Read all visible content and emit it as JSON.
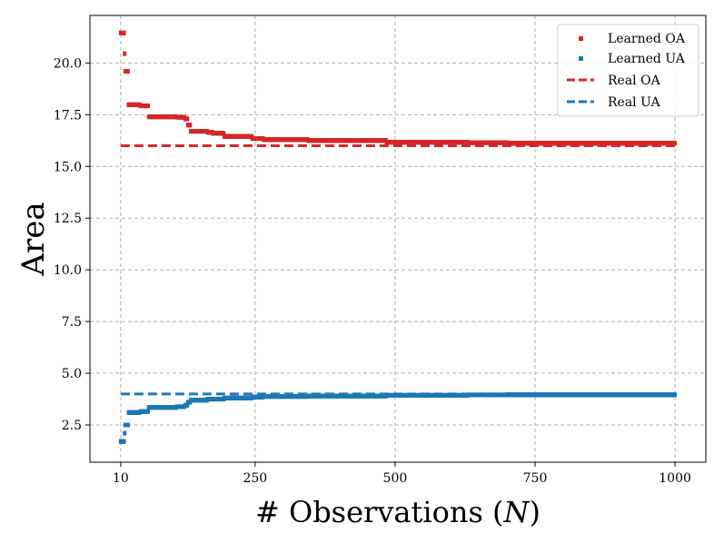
{
  "chart_data": {
    "type": "scatter",
    "xlabel": "# Observations (N)",
    "xlabel_parts": [
      "# Observations (",
      "N",
      ")"
    ],
    "ylabel": "Area",
    "xlim": [
      -45,
      1055
    ],
    "ylim": [
      0.7,
      22.3
    ],
    "grid": true,
    "legend_position": "top-right",
    "x_ticks": [
      10,
      250,
      500,
      750,
      1000
    ],
    "x_tick_labels": [
      "10",
      "250",
      "500",
      "750",
      "1000"
    ],
    "y_ticks": [
      2.5,
      5.0,
      7.5,
      10.0,
      12.5,
      15.0,
      17.5,
      20.0
    ],
    "y_tick_labels": [
      "2.5",
      "5.0",
      "7.5",
      "10.0",
      "12.5",
      "15.0",
      "17.5",
      "20.0"
    ],
    "series": [
      {
        "name": "Learned OA",
        "kind": "points",
        "color": "#d62728",
        "steps": [
          [
            10,
            21.45
          ],
          [
            11,
            21.45
          ],
          [
            12,
            21.45
          ],
          [
            13,
            21.45
          ],
          [
            14,
            21.45
          ],
          [
            15,
            21.45
          ],
          [
            17,
            20.45
          ],
          [
            18,
            19.6
          ],
          [
            19,
            19.6
          ],
          [
            20,
            19.6
          ],
          [
            21,
            19.6
          ],
          [
            22,
            19.6
          ],
          [
            24,
            17.98
          ],
          [
            45,
            17.93
          ],
          [
            60,
            17.4
          ],
          [
            110,
            17.38
          ],
          [
            125,
            17.3
          ],
          [
            130,
            17.0
          ],
          [
            135,
            16.7
          ],
          [
            165,
            16.65
          ],
          [
            175,
            16.6
          ],
          [
            195,
            16.45
          ],
          [
            245,
            16.35
          ],
          [
            265,
            16.3
          ],
          [
            345,
            16.25
          ],
          [
            485,
            16.17
          ],
          [
            630,
            16.15
          ],
          [
            700,
            16.12
          ]
        ],
        "x_end": 1000
      },
      {
        "name": "Learned UA",
        "kind": "points",
        "color": "#1f77b4",
        "steps": [
          [
            10,
            1.7
          ],
          [
            11,
            1.7
          ],
          [
            12,
            1.7
          ],
          [
            13,
            1.7
          ],
          [
            14,
            1.7
          ],
          [
            15,
            1.7
          ],
          [
            17,
            2.1
          ],
          [
            18,
            2.5
          ],
          [
            19,
            2.5
          ],
          [
            20,
            2.5
          ],
          [
            21,
            2.5
          ],
          [
            22,
            2.5
          ],
          [
            24,
            3.1
          ],
          [
            45,
            3.15
          ],
          [
            60,
            3.35
          ],
          [
            110,
            3.38
          ],
          [
            125,
            3.45
          ],
          [
            130,
            3.6
          ],
          [
            135,
            3.7
          ],
          [
            165,
            3.75
          ],
          [
            175,
            3.75
          ],
          [
            195,
            3.8
          ],
          [
            245,
            3.85
          ],
          [
            265,
            3.88
          ],
          [
            345,
            3.9
          ],
          [
            485,
            3.93
          ],
          [
            630,
            3.95
          ],
          [
            700,
            3.96
          ]
        ],
        "x_end": 1000
      },
      {
        "name": "Real OA",
        "kind": "dashed-line",
        "color": "#d62728",
        "x": [
          10,
          1000
        ],
        "y": [
          16.0,
          16.0
        ]
      },
      {
        "name": "Real UA",
        "kind": "dashed-line",
        "color": "#1f77b4",
        "x": [
          10,
          1000
        ],
        "y": [
          4.0,
          4.0
        ]
      }
    ]
  }
}
